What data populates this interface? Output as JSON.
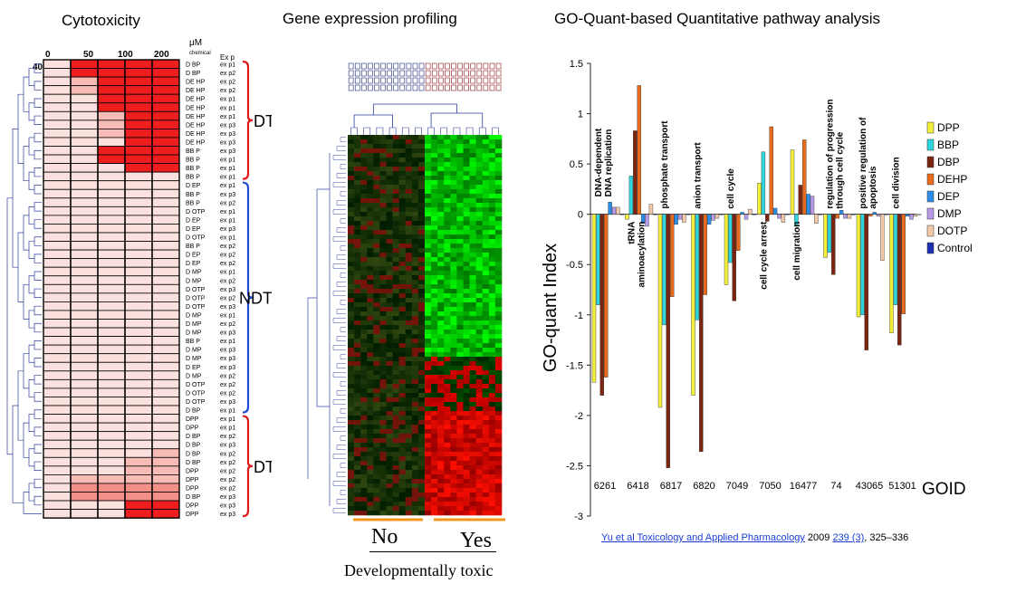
{
  "panels": {
    "cytotoxicity": {
      "title": "Cytotoxicity",
      "unit": "μM",
      "unit_sub": "chemical",
      "exp_header": "Ex p",
      "doses": [
        "0",
        "50",
        "100",
        "200",
        "400"
      ],
      "rows": [
        {
          "chem": "D BP",
          "exp": "ex p1",
          "levels": [
            1,
            4,
            4,
            4,
            4
          ]
        },
        {
          "chem": "D BP",
          "exp": "ex p2",
          "levels": [
            1,
            4,
            4,
            4,
            4
          ]
        },
        {
          "chem": "DE HP",
          "exp": "ex p2",
          "levels": [
            1,
            2,
            4,
            4,
            4
          ]
        },
        {
          "chem": "DE HP",
          "exp": "ex p2",
          "levels": [
            1,
            2,
            4,
            4,
            4
          ]
        },
        {
          "chem": "DE HP",
          "exp": "ex p1",
          "levels": [
            1,
            1,
            4,
            4,
            4
          ]
        },
        {
          "chem": "DE HP",
          "exp": "ex p1",
          "levels": [
            1,
            1,
            4,
            4,
            4
          ]
        },
        {
          "chem": "DE HP",
          "exp": "ex p1",
          "levels": [
            1,
            1,
            2,
            4,
            4
          ]
        },
        {
          "chem": "DE HP",
          "exp": "ex p3",
          "levels": [
            1,
            1,
            2,
            4,
            4
          ]
        },
        {
          "chem": "DE HP",
          "exp": "ex p3",
          "levels": [
            1,
            1,
            2,
            4,
            4
          ]
        },
        {
          "chem": "DE HP",
          "exp": "ex p3",
          "levels": [
            1,
            1,
            1,
            4,
            4
          ]
        },
        {
          "chem": "BB P",
          "exp": "ex p3",
          "levels": [
            1,
            1,
            4,
            4,
            4
          ]
        },
        {
          "chem": "BB P",
          "exp": "ex p1",
          "levels": [
            1,
            1,
            4,
            4,
            4
          ]
        },
        {
          "chem": "BB P",
          "exp": "ex p1",
          "levels": [
            1,
            1,
            1,
            4,
            4
          ]
        },
        {
          "chem": "BB P",
          "exp": "ex p1",
          "levels": [
            1,
            1,
            1,
            1,
            1
          ]
        },
        {
          "chem": "D EP",
          "exp": "ex p1",
          "levels": [
            1,
            1,
            1,
            1,
            1
          ]
        },
        {
          "chem": "BB P",
          "exp": "ex p3",
          "levels": [
            1,
            1,
            1,
            1,
            1
          ]
        },
        {
          "chem": "BB P",
          "exp": "ex p2",
          "levels": [
            1,
            1,
            1,
            1,
            1
          ]
        },
        {
          "chem": "D OTP",
          "exp": "ex p1",
          "levels": [
            1,
            1,
            1,
            1,
            1
          ]
        },
        {
          "chem": "D EP",
          "exp": "ex p1",
          "levels": [
            1,
            1,
            1,
            1,
            1
          ]
        },
        {
          "chem": "D EP",
          "exp": "ex p3",
          "levels": [
            1,
            1,
            1,
            1,
            1
          ]
        },
        {
          "chem": "D OTP",
          "exp": "ex p1",
          "levels": [
            1,
            1,
            1,
            1,
            1
          ]
        },
        {
          "chem": "BB P",
          "exp": "ex p2",
          "levels": [
            1,
            1,
            1,
            1,
            1
          ]
        },
        {
          "chem": "D EP",
          "exp": "ex p2",
          "levels": [
            1,
            1,
            1,
            1,
            1
          ]
        },
        {
          "chem": "D EP",
          "exp": "ex p2",
          "levels": [
            1,
            1,
            1,
            1,
            1
          ]
        },
        {
          "chem": "D MP",
          "exp": "ex p1",
          "levels": [
            1,
            1,
            1,
            1,
            1
          ]
        },
        {
          "chem": "D MP",
          "exp": "ex p2",
          "levels": [
            1,
            1,
            1,
            1,
            1
          ]
        },
        {
          "chem": "D OTP",
          "exp": "ex p3",
          "levels": [
            1,
            1,
            1,
            1,
            1
          ]
        },
        {
          "chem": "D OTP",
          "exp": "ex p2",
          "levels": [
            1,
            1,
            1,
            1,
            1
          ]
        },
        {
          "chem": "D OTP",
          "exp": "ex p3",
          "levels": [
            1,
            1,
            1,
            1,
            1
          ]
        },
        {
          "chem": "D MP",
          "exp": "ex p1",
          "levels": [
            1,
            1,
            1,
            1,
            1
          ]
        },
        {
          "chem": "D MP",
          "exp": "ex p2",
          "levels": [
            1,
            1,
            1,
            1,
            1
          ]
        },
        {
          "chem": "D MP",
          "exp": "ex p3",
          "levels": [
            1,
            1,
            1,
            1,
            1
          ]
        },
        {
          "chem": "BB P",
          "exp": "ex p1",
          "levels": [
            1,
            1,
            1,
            1,
            1
          ]
        },
        {
          "chem": "D MP",
          "exp": "ex p3",
          "levels": [
            1,
            1,
            1,
            1,
            1
          ]
        },
        {
          "chem": "D MP",
          "exp": "ex p3",
          "levels": [
            1,
            1,
            1,
            1,
            1
          ]
        },
        {
          "chem": "D EP",
          "exp": "ex p3",
          "levels": [
            1,
            1,
            1,
            1,
            1
          ]
        },
        {
          "chem": "D MP",
          "exp": "ex p2",
          "levels": [
            1,
            1,
            1,
            1,
            1
          ]
        },
        {
          "chem": "D OTP",
          "exp": "ex p2",
          "levels": [
            1,
            1,
            1,
            1,
            1
          ]
        },
        {
          "chem": "D OTP",
          "exp": "ex p2",
          "levels": [
            1,
            1,
            1,
            1,
            1
          ]
        },
        {
          "chem": "D OTP",
          "exp": "ex p3",
          "levels": [
            1,
            1,
            1,
            1,
            1
          ]
        },
        {
          "chem": "D BP",
          "exp": "ex p1",
          "levels": [
            1,
            1,
            1,
            1,
            1
          ]
        },
        {
          "chem": "DPP",
          "exp": "ex p1",
          "levels": [
            1,
            1,
            1,
            1,
            1
          ]
        },
        {
          "chem": "DPP",
          "exp": "ex p1",
          "levels": [
            1,
            1,
            1,
            1,
            1
          ]
        },
        {
          "chem": "D BP",
          "exp": "ex p2",
          "levels": [
            1,
            1,
            1,
            1,
            1
          ]
        },
        {
          "chem": "D BP",
          "exp": "ex p3",
          "levels": [
            1,
            1,
            1,
            1,
            1
          ]
        },
        {
          "chem": "D BP",
          "exp": "ex p2",
          "levels": [
            1,
            1,
            1,
            1,
            2
          ]
        },
        {
          "chem": "D BP",
          "exp": "ex p2",
          "levels": [
            1,
            1,
            1,
            2,
            2
          ]
        },
        {
          "chem": "DPP",
          "exp": "ex p2",
          "levels": [
            1,
            1,
            1,
            2,
            2
          ]
        },
        {
          "chem": "DPP",
          "exp": "ex p2",
          "levels": [
            1,
            2,
            2,
            2,
            2
          ]
        },
        {
          "chem": "DPP",
          "exp": "ex p2",
          "levels": [
            1,
            3,
            3,
            3,
            3
          ]
        },
        {
          "chem": "D BP",
          "exp": "ex p3",
          "levels": [
            1,
            3,
            3,
            3,
            3
          ]
        },
        {
          "chem": "DPP",
          "exp": "ex p3",
          "levels": [
            1,
            1,
            1,
            4,
            4
          ]
        },
        {
          "chem": "DPP",
          "exp": "ex p3",
          "levels": [
            1,
            1,
            1,
            4,
            4
          ]
        }
      ],
      "groups": [
        {
          "label": "DT",
          "color": "#e11b1b",
          "start": 0,
          "end": 13
        },
        {
          "label": "NDT",
          "color": "#1f4fd8",
          "start": 14,
          "end": 40
        },
        {
          "label": "DT",
          "color": "#e11b1b",
          "start": 41,
          "end": 52
        }
      ]
    },
    "expression": {
      "title": "Gene expression profiling",
      "group_no": "No",
      "group_yes": "Yes",
      "caption": "Developmentally  toxic"
    },
    "goquant": {
      "title": "GO-Quant-based  Quantitative pathway analysis",
      "citation_link": "Yu et al Toxicology and Applied Pharmacology",
      "citation_year": " 2009 ",
      "citation_vol": "239",
      "citation_issue": " (3)",
      "citation_pages": ", 325–336"
    }
  },
  "chart_data": {
    "type": "bar",
    "title": "",
    "ylabel": "GO-quant Index",
    "xlabel": "GOID",
    "ylim": [
      -3,
      1.5
    ],
    "yticks": [
      1.5,
      1,
      0.5,
      0,
      -0.5,
      -1,
      -1.5,
      -2,
      -2.5,
      -3
    ],
    "legend": "right",
    "categories": [
      "6261",
      "6418",
      "6817",
      "6820",
      "7049",
      "7050",
      "16477",
      "74",
      "43065",
      "51301"
    ],
    "category_labels": [
      [
        "DNA-dependent",
        "DNA replication"
      ],
      [
        "tRNA",
        "aminoacylation"
      ],
      [
        "phosphate  transport"
      ],
      [
        "anion transport"
      ],
      [
        "cell cycle"
      ],
      [
        "cell cycle  arrest"
      ],
      [
        "cell migration"
      ],
      [
        "regulation of  progression",
        "through cell cycle"
      ],
      [
        "positive  regulation of",
        "apoptosis"
      ],
      [
        "cell division"
      ]
    ],
    "series": [
      {
        "name": "DPP",
        "color": "#f4f03a",
        "values": [
          -1.67,
          -0.05,
          -1.92,
          -1.8,
          -0.7,
          0.31,
          0.64,
          -0.43,
          -1.02,
          -1.18
        ]
      },
      {
        "name": "BBP",
        "color": "#2fd4dc",
        "values": [
          -0.9,
          0.38,
          -1.1,
          -1.05,
          -0.48,
          0.62,
          -0.12,
          -0.38,
          -1.0,
          -0.9
        ]
      },
      {
        "name": "DBP",
        "color": "#7b2410",
        "values": [
          -1.8,
          0.83,
          -2.52,
          -2.36,
          -0.86,
          -0.07,
          0.29,
          -0.6,
          -1.35,
          -1.3
        ]
      },
      {
        "name": "DEHP",
        "color": "#e86a1d",
        "values": [
          -1.62,
          1.28,
          -0.82,
          -0.8,
          -0.36,
          0.87,
          0.74,
          -0.04,
          -0.02,
          -0.99
        ]
      },
      {
        "name": "DEP",
        "color": "#2a8ee8",
        "values": [
          0.12,
          -0.09,
          -0.1,
          -0.1,
          0.02,
          0.06,
          0.2,
          0.04,
          0.02,
          -0.02
        ]
      },
      {
        "name": "DMP",
        "color": "#b89be6",
        "values": [
          0.07,
          -0.12,
          -0.05,
          -0.06,
          -0.05,
          -0.04,
          0.18,
          -0.04,
          -0.02,
          -0.05
        ]
      },
      {
        "name": "DOTP",
        "color": "#f3c9a8",
        "values": [
          0.07,
          0.1,
          -0.08,
          -0.04,
          0.05,
          -0.08,
          -0.09,
          -0.04,
          -0.46,
          -0.02
        ]
      },
      {
        "name": "Control",
        "color": "#1c2fb0",
        "values": [
          0,
          0,
          0,
          0,
          0,
          0,
          0,
          0,
          0,
          0
        ]
      }
    ]
  }
}
